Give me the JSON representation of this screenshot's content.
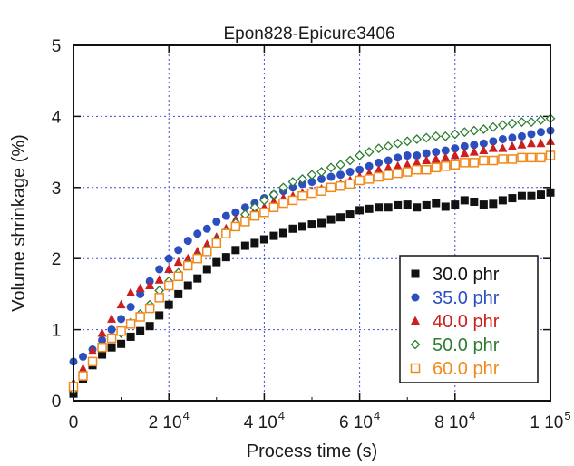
{
  "chart_data": {
    "type": "scatter",
    "title": "Epon828-Epicure3406",
    "xlabel": "Process time (s)",
    "ylabel": "Volume shrinkage (%)",
    "xlim": [
      0,
      100000
    ],
    "ylim": [
      0,
      5
    ],
    "grid": true,
    "legend_position": "bottom-right",
    "x_ticks": [
      {
        "value": 0,
        "base": "0",
        "exp": ""
      },
      {
        "value": 20000,
        "base": "2 10",
        "exp": "4"
      },
      {
        "value": 40000,
        "base": "4 10",
        "exp": "4"
      },
      {
        "value": 60000,
        "base": "6 10",
        "exp": "4"
      },
      {
        "value": 80000,
        "base": "8 10",
        "exp": "4"
      },
      {
        "value": 100000,
        "base": "1 10",
        "exp": "5"
      }
    ],
    "y_ticks": [
      {
        "value": 0,
        "label": "0"
      },
      {
        "value": 1,
        "label": "1"
      },
      {
        "value": 2,
        "label": "2"
      },
      {
        "value": 3,
        "label": "3"
      },
      {
        "value": 4,
        "label": "4"
      },
      {
        "value": 5,
        "label": "5"
      }
    ],
    "series": [
      {
        "name": "30.0 phr",
        "color": "#111111",
        "marker": "square-filled",
        "x": [
          0,
          2000,
          4000,
          6000,
          8000,
          10000,
          12000,
          14000,
          16000,
          18000,
          20000,
          22000,
          24000,
          26000,
          28000,
          30000,
          32000,
          34000,
          36000,
          38000,
          40000,
          42000,
          44000,
          46000,
          48000,
          50000,
          52000,
          54000,
          56000,
          58000,
          60000,
          62000,
          64000,
          66000,
          68000,
          70000,
          72000,
          74000,
          76000,
          78000,
          80000,
          82000,
          84000,
          86000,
          88000,
          90000,
          92000,
          94000,
          96000,
          98000,
          100000
        ],
        "y": [
          0.1,
          0.3,
          0.5,
          0.65,
          0.75,
          0.8,
          0.9,
          0.98,
          1.05,
          1.2,
          1.35,
          1.5,
          1.62,
          1.72,
          1.85,
          1.95,
          2.02,
          2.12,
          2.18,
          2.22,
          2.27,
          2.32,
          2.36,
          2.42,
          2.45,
          2.48,
          2.5,
          2.55,
          2.58,
          2.62,
          2.68,
          2.7,
          2.72,
          2.72,
          2.75,
          2.76,
          2.72,
          2.75,
          2.78,
          2.73,
          2.76,
          2.82,
          2.8,
          2.76,
          2.77,
          2.82,
          2.85,
          2.88,
          2.88,
          2.9,
          2.93
        ]
      },
      {
        "name": "35.0 phr",
        "color": "#2b4fbf",
        "marker": "circle-filled",
        "x": [
          0,
          2000,
          4000,
          6000,
          8000,
          10000,
          12000,
          14000,
          16000,
          18000,
          20000,
          22000,
          24000,
          26000,
          28000,
          30000,
          32000,
          34000,
          36000,
          38000,
          40000,
          42000,
          44000,
          46000,
          48000,
          50000,
          52000,
          54000,
          56000,
          58000,
          60000,
          62000,
          64000,
          66000,
          68000,
          70000,
          72000,
          74000,
          76000,
          78000,
          80000,
          82000,
          84000,
          86000,
          88000,
          90000,
          92000,
          94000,
          96000,
          98000,
          100000
        ],
        "y": [
          0.55,
          0.62,
          0.72,
          0.85,
          1.0,
          1.15,
          1.32,
          1.5,
          1.68,
          1.85,
          2.0,
          2.12,
          2.25,
          2.35,
          2.42,
          2.52,
          2.6,
          2.65,
          2.72,
          2.78,
          2.85,
          2.9,
          2.95,
          3.0,
          3.05,
          3.08,
          3.12,
          3.15,
          3.18,
          3.22,
          3.25,
          3.3,
          3.35,
          3.38,
          3.42,
          3.45,
          3.45,
          3.48,
          3.5,
          3.52,
          3.55,
          3.58,
          3.6,
          3.62,
          3.65,
          3.68,
          3.7,
          3.72,
          3.75,
          3.78,
          3.8
        ]
      },
      {
        "name": "40.0 phr",
        "color": "#cc1f1f",
        "marker": "triangle-filled",
        "x": [
          0,
          2000,
          4000,
          6000,
          8000,
          10000,
          12000,
          14000,
          16000,
          18000,
          20000,
          22000,
          24000,
          26000,
          28000,
          30000,
          32000,
          34000,
          36000,
          38000,
          40000,
          42000,
          44000,
          46000,
          48000,
          50000,
          52000,
          54000,
          56000,
          58000,
          60000,
          62000,
          64000,
          66000,
          68000,
          70000,
          72000,
          74000,
          76000,
          78000,
          80000,
          82000,
          84000,
          86000,
          88000,
          90000,
          92000,
          94000,
          96000,
          98000,
          100000
        ],
        "y": [
          0.25,
          0.45,
          0.7,
          0.95,
          1.15,
          1.35,
          1.52,
          1.58,
          1.62,
          1.7,
          1.85,
          1.95,
          2.0,
          2.1,
          2.2,
          2.3,
          2.42,
          2.55,
          2.62,
          2.68,
          2.72,
          2.8,
          2.85,
          2.88,
          2.92,
          2.95,
          2.98,
          3.0,
          3.05,
          3.1,
          3.15,
          3.2,
          3.25,
          3.28,
          3.3,
          3.32,
          3.35,
          3.38,
          3.4,
          3.42,
          3.45,
          3.48,
          3.5,
          3.52,
          3.55,
          3.55,
          3.58,
          3.6,
          3.62,
          3.62,
          3.65
        ]
      },
      {
        "name": "50.0 phr",
        "color": "#2e7d32",
        "marker": "diamond-open",
        "x": [
          0,
          2000,
          4000,
          6000,
          8000,
          10000,
          12000,
          14000,
          16000,
          18000,
          20000,
          22000,
          24000,
          26000,
          28000,
          30000,
          32000,
          34000,
          36000,
          38000,
          40000,
          42000,
          44000,
          46000,
          48000,
          50000,
          52000,
          54000,
          56000,
          58000,
          60000,
          62000,
          64000,
          66000,
          68000,
          70000,
          72000,
          74000,
          76000,
          78000,
          80000,
          82000,
          84000,
          86000,
          88000,
          90000,
          92000,
          94000,
          96000,
          98000,
          100000
        ],
        "y": [
          0.15,
          0.35,
          0.55,
          0.75,
          0.88,
          0.95,
          1.1,
          1.22,
          1.35,
          1.55,
          1.68,
          1.8,
          1.92,
          2.02,
          2.12,
          2.25,
          2.38,
          2.5,
          2.62,
          2.72,
          2.82,
          2.9,
          3.0,
          3.08,
          3.12,
          3.18,
          3.22,
          3.28,
          3.32,
          3.38,
          3.45,
          3.5,
          3.55,
          3.58,
          3.62,
          3.65,
          3.68,
          3.7,
          3.72,
          3.72,
          3.75,
          3.78,
          3.8,
          3.82,
          3.85,
          3.88,
          3.9,
          3.92,
          3.92,
          3.95,
          3.97
        ]
      },
      {
        "name": "60.0 phr",
        "color": "#f08a1c",
        "marker": "square-open",
        "x": [
          0,
          2000,
          4000,
          6000,
          8000,
          10000,
          12000,
          14000,
          16000,
          18000,
          20000,
          22000,
          24000,
          26000,
          28000,
          30000,
          32000,
          34000,
          36000,
          38000,
          40000,
          42000,
          44000,
          46000,
          48000,
          50000,
          52000,
          54000,
          56000,
          58000,
          60000,
          62000,
          64000,
          66000,
          68000,
          70000,
          72000,
          74000,
          76000,
          78000,
          80000,
          82000,
          84000,
          86000,
          88000,
          90000,
          92000,
          94000,
          96000,
          98000,
          100000
        ],
        "y": [
          0.2,
          0.35,
          0.55,
          0.75,
          0.88,
          0.98,
          1.08,
          1.18,
          1.3,
          1.45,
          1.62,
          1.75,
          1.9,
          2.0,
          2.1,
          2.22,
          2.35,
          2.45,
          2.52,
          2.6,
          2.65,
          2.72,
          2.78,
          2.82,
          2.88,
          2.92,
          2.95,
          3.0,
          3.02,
          3.05,
          3.1,
          3.12,
          3.15,
          3.18,
          3.2,
          3.22,
          3.25,
          3.25,
          3.28,
          3.3,
          3.32,
          3.35,
          3.35,
          3.38,
          3.38,
          3.4,
          3.4,
          3.42,
          3.42,
          3.42,
          3.45
        ]
      }
    ]
  }
}
